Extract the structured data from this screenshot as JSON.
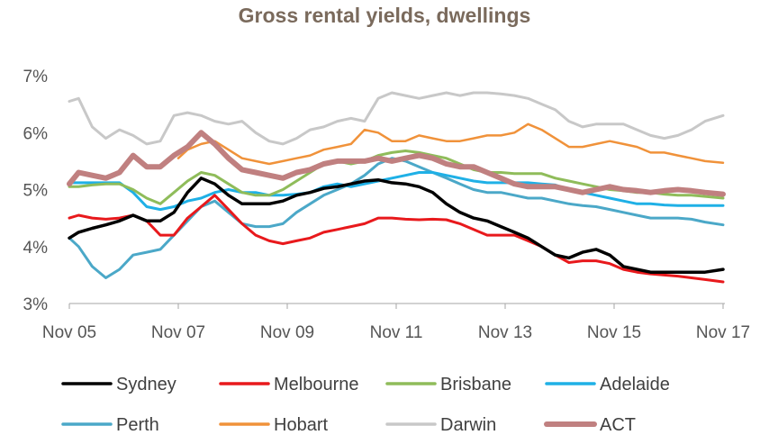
{
  "chart_data": {
    "type": "line",
    "title": "Gross rental yields, dwellings",
    "xlabel": "",
    "ylabel": "",
    "x_ticks": [
      "Nov 05",
      "Nov 07",
      "Nov 09",
      "Nov 11",
      "Nov 13",
      "Nov 15",
      "Nov 17"
    ],
    "y_ticks": [
      "3%",
      "4%",
      "5%",
      "6%",
      "7%"
    ],
    "ylim": [
      3,
      7
    ],
    "xlim": [
      2005.83,
      2017.83
    ],
    "grid": false,
    "legend_position": "bottom",
    "series": [
      {
        "name": "Sydney",
        "color": "#000000",
        "x": [
          2005.83,
          2006.0,
          2006.25,
          2006.5,
          2006.75,
          2007.0,
          2007.25,
          2007.5,
          2007.75,
          2008.0,
          2008.25,
          2008.5,
          2008.75,
          2009.0,
          2009.25,
          2009.5,
          2009.75,
          2010.0,
          2010.25,
          2010.5,
          2010.75,
          2011.0,
          2011.25,
          2011.5,
          2011.75,
          2012.0,
          2012.25,
          2012.5,
          2012.75,
          2013.0,
          2013.25,
          2013.5,
          2013.75,
          2014.0,
          2014.25,
          2014.5,
          2014.75,
          2015.0,
          2015.25,
          2015.5,
          2015.75,
          2016.0,
          2016.25,
          2016.5,
          2016.75,
          2017.0,
          2017.25,
          2017.5,
          2017.83
        ],
        "y": [
          4.15,
          4.25,
          4.32,
          4.38,
          4.45,
          4.55,
          4.45,
          4.45,
          4.6,
          4.95,
          5.2,
          5.1,
          4.9,
          4.75,
          4.75,
          4.75,
          4.8,
          4.9,
          4.95,
          5.02,
          5.05,
          5.1,
          5.15,
          5.17,
          5.12,
          5.1,
          5.05,
          4.95,
          4.75,
          4.6,
          4.5,
          4.45,
          4.35,
          4.25,
          4.15,
          4.0,
          3.85,
          3.8,
          3.9,
          3.95,
          3.85,
          3.65,
          3.6,
          3.55,
          3.55,
          3.55,
          3.55,
          3.55,
          3.6
        ]
      },
      {
        "name": "Melbourne",
        "color": "#e8191c",
        "x": [
          2005.83,
          2006.0,
          2006.25,
          2006.5,
          2006.75,
          2007.0,
          2007.25,
          2007.5,
          2007.75,
          2008.0,
          2008.25,
          2008.5,
          2008.75,
          2009.0,
          2009.25,
          2009.5,
          2009.75,
          2010.0,
          2010.25,
          2010.5,
          2010.75,
          2011.0,
          2011.25,
          2011.5,
          2011.75,
          2012.0,
          2012.25,
          2012.5,
          2012.75,
          2013.0,
          2013.25,
          2013.5,
          2013.75,
          2014.0,
          2014.25,
          2014.5,
          2014.75,
          2015.0,
          2015.25,
          2015.5,
          2015.75,
          2016.0,
          2016.25,
          2016.5,
          2016.75,
          2017.0,
          2017.25,
          2017.5,
          2017.83
        ],
        "y": [
          4.5,
          4.55,
          4.5,
          4.48,
          4.5,
          4.55,
          4.45,
          4.2,
          4.2,
          4.5,
          4.7,
          4.9,
          4.65,
          4.4,
          4.2,
          4.1,
          4.05,
          4.1,
          4.15,
          4.25,
          4.3,
          4.35,
          4.4,
          4.5,
          4.5,
          4.48,
          4.47,
          4.48,
          4.47,
          4.4,
          4.3,
          4.2,
          4.2,
          4.2,
          4.1,
          4.0,
          3.85,
          3.72,
          3.75,
          3.75,
          3.7,
          3.6,
          3.55,
          3.52,
          3.5,
          3.48,
          3.45,
          3.42,
          3.38
        ]
      },
      {
        "name": "Brisbane",
        "color": "#8fbc5a",
        "x": [
          2005.83,
          2006.0,
          2006.25,
          2006.5,
          2006.75,
          2007.0,
          2007.25,
          2007.5,
          2007.75,
          2008.0,
          2008.25,
          2008.5,
          2008.75,
          2009.0,
          2009.25,
          2009.5,
          2009.75,
          2010.0,
          2010.25,
          2010.5,
          2010.75,
          2011.0,
          2011.25,
          2011.5,
          2011.75,
          2012.0,
          2012.25,
          2012.5,
          2012.75,
          2013.0,
          2013.25,
          2013.5,
          2013.75,
          2014.0,
          2014.25,
          2014.5,
          2014.75,
          2015.0,
          2015.25,
          2015.5,
          2015.75,
          2016.0,
          2016.25,
          2016.5,
          2016.75,
          2017.0,
          2017.25,
          2017.5,
          2017.83
        ],
        "y": [
          5.05,
          5.05,
          5.08,
          5.1,
          5.1,
          5.0,
          4.85,
          4.75,
          4.95,
          5.15,
          5.3,
          5.25,
          5.1,
          4.95,
          4.9,
          4.9,
          5.0,
          5.15,
          5.3,
          5.45,
          5.5,
          5.45,
          5.5,
          5.6,
          5.65,
          5.68,
          5.65,
          5.6,
          5.55,
          5.45,
          5.35,
          5.3,
          5.3,
          5.28,
          5.28,
          5.28,
          5.2,
          5.15,
          5.1,
          5.05,
          5.0,
          4.98,
          4.95,
          4.95,
          4.92,
          4.9,
          4.9,
          4.88,
          4.85
        ]
      },
      {
        "name": "Adelaide",
        "color": "#1fb0e6",
        "x": [
          2005.83,
          2006.0,
          2006.25,
          2006.5,
          2006.75,
          2007.0,
          2007.25,
          2007.5,
          2007.75,
          2008.0,
          2008.25,
          2008.5,
          2008.75,
          2009.0,
          2009.25,
          2009.5,
          2009.75,
          2010.0,
          2010.25,
          2010.5,
          2010.75,
          2011.0,
          2011.25,
          2011.5,
          2011.75,
          2012.0,
          2012.25,
          2012.5,
          2012.75,
          2013.0,
          2013.25,
          2013.5,
          2013.75,
          2014.0,
          2014.25,
          2014.5,
          2014.75,
          2015.0,
          2015.25,
          2015.5,
          2015.75,
          2016.0,
          2016.25,
          2016.5,
          2016.75,
          2017.0,
          2017.25,
          2017.5,
          2017.83
        ],
        "y": [
          5.12,
          5.12,
          5.12,
          5.12,
          5.12,
          4.95,
          4.7,
          4.65,
          4.7,
          4.8,
          4.85,
          4.95,
          5.0,
          4.95,
          4.95,
          4.9,
          4.9,
          4.92,
          4.95,
          5.05,
          5.1,
          5.05,
          5.1,
          5.15,
          5.2,
          5.25,
          5.3,
          5.3,
          5.25,
          5.2,
          5.15,
          5.12,
          5.12,
          5.12,
          5.12,
          5.1,
          5.08,
          5.0,
          4.95,
          4.9,
          4.85,
          4.8,
          4.75,
          4.75,
          4.73,
          4.72,
          4.72,
          4.72,
          4.72
        ]
      },
      {
        "name": "Perth",
        "color": "#4ba8c8",
        "x": [
          2005.83,
          2006.0,
          2006.25,
          2006.5,
          2006.75,
          2007.0,
          2007.25,
          2007.5,
          2007.75,
          2008.0,
          2008.25,
          2008.5,
          2008.75,
          2009.0,
          2009.25,
          2009.5,
          2009.75,
          2010.0,
          2010.25,
          2010.5,
          2010.75,
          2011.0,
          2011.25,
          2011.5,
          2011.75,
          2012.0,
          2012.25,
          2012.5,
          2012.75,
          2013.0,
          2013.25,
          2013.5,
          2013.75,
          2014.0,
          2014.25,
          2014.5,
          2014.75,
          2015.0,
          2015.25,
          2015.5,
          2015.75,
          2016.0,
          2016.25,
          2016.5,
          2016.75,
          2017.0,
          2017.25,
          2017.5,
          2017.83
        ],
        "y": [
          4.15,
          4.0,
          3.65,
          3.45,
          3.6,
          3.85,
          3.9,
          3.95,
          4.2,
          4.45,
          4.7,
          4.8,
          4.6,
          4.4,
          4.35,
          4.35,
          4.4,
          4.6,
          4.75,
          4.9,
          5.0,
          5.1,
          5.25,
          5.45,
          5.55,
          5.5,
          5.4,
          5.3,
          5.2,
          5.1,
          5.0,
          4.95,
          4.95,
          4.9,
          4.85,
          4.85,
          4.8,
          4.75,
          4.72,
          4.7,
          4.65,
          4.6,
          4.55,
          4.5,
          4.5,
          4.5,
          4.48,
          4.43,
          4.38
        ]
      },
      {
        "name": "Hobart",
        "color": "#f0923a",
        "x": [
          2007.83,
          2008.0,
          2008.25,
          2008.5,
          2008.75,
          2009.0,
          2009.25,
          2009.5,
          2009.75,
          2010.0,
          2010.25,
          2010.5,
          2010.75,
          2011.0,
          2011.25,
          2011.5,
          2011.75,
          2012.0,
          2012.25,
          2012.5,
          2012.75,
          2013.0,
          2013.25,
          2013.5,
          2013.75,
          2014.0,
          2014.25,
          2014.5,
          2014.75,
          2015.0,
          2015.25,
          2015.5,
          2015.75,
          2016.0,
          2016.25,
          2016.5,
          2016.75,
          2017.0,
          2017.25,
          2017.5,
          2017.83
        ],
        "y": [
          5.55,
          5.7,
          5.8,
          5.85,
          5.7,
          5.55,
          5.5,
          5.45,
          5.5,
          5.55,
          5.6,
          5.7,
          5.75,
          5.8,
          6.05,
          6.0,
          5.85,
          5.85,
          5.95,
          5.9,
          5.85,
          5.85,
          5.9,
          5.95,
          5.95,
          6.0,
          6.15,
          6.05,
          5.9,
          5.75,
          5.75,
          5.8,
          5.85,
          5.8,
          5.75,
          5.65,
          5.65,
          5.6,
          5.55,
          5.5,
          5.47
        ]
      },
      {
        "name": "Darwin",
        "color": "#c8c8c8",
        "x": [
          2005.83,
          2006.0,
          2006.25,
          2006.5,
          2006.75,
          2007.0,
          2007.25,
          2007.5,
          2007.75,
          2008.0,
          2008.25,
          2008.5,
          2008.75,
          2009.0,
          2009.25,
          2009.5,
          2009.75,
          2010.0,
          2010.25,
          2010.5,
          2010.75,
          2011.0,
          2011.25,
          2011.5,
          2011.75,
          2012.0,
          2012.25,
          2012.5,
          2012.75,
          2013.0,
          2013.25,
          2013.5,
          2013.75,
          2014.0,
          2014.25,
          2014.5,
          2014.75,
          2015.0,
          2015.25,
          2015.5,
          2015.75,
          2016.0,
          2016.25,
          2016.5,
          2016.75,
          2017.0,
          2017.25,
          2017.5,
          2017.83
        ],
        "y": [
          6.55,
          6.6,
          6.1,
          5.9,
          6.05,
          5.95,
          5.8,
          5.85,
          6.3,
          6.35,
          6.3,
          6.2,
          6.15,
          6.2,
          6.0,
          5.85,
          5.8,
          5.9,
          6.05,
          6.1,
          6.2,
          6.25,
          6.2,
          6.6,
          6.7,
          6.65,
          6.6,
          6.65,
          6.7,
          6.65,
          6.7,
          6.7,
          6.68,
          6.65,
          6.6,
          6.5,
          6.4,
          6.2,
          6.1,
          6.15,
          6.15,
          6.15,
          6.05,
          5.95,
          5.9,
          5.95,
          6.05,
          6.2,
          6.3
        ]
      },
      {
        "name": "ACT",
        "color": "#c08080",
        "x": [
          2005.83,
          2006.0,
          2006.25,
          2006.5,
          2006.75,
          2007.0,
          2007.25,
          2007.5,
          2007.75,
          2008.0,
          2008.25,
          2008.5,
          2008.75,
          2009.0,
          2009.25,
          2009.5,
          2009.75,
          2010.0,
          2010.25,
          2010.5,
          2010.75,
          2011.0,
          2011.25,
          2011.5,
          2011.75,
          2012.0,
          2012.25,
          2012.5,
          2012.75,
          2013.0,
          2013.25,
          2013.5,
          2013.75,
          2014.0,
          2014.25,
          2014.5,
          2014.75,
          2015.0,
          2015.25,
          2015.5,
          2015.75,
          2016.0,
          2016.25,
          2016.5,
          2016.75,
          2017.0,
          2017.25,
          2017.5,
          2017.83
        ],
        "y": [
          5.1,
          5.3,
          5.25,
          5.2,
          5.3,
          5.6,
          5.4,
          5.4,
          5.6,
          5.75,
          6.0,
          5.8,
          5.55,
          5.35,
          5.3,
          5.25,
          5.2,
          5.3,
          5.35,
          5.45,
          5.5,
          5.5,
          5.5,
          5.55,
          5.5,
          5.55,
          5.6,
          5.55,
          5.45,
          5.4,
          5.4,
          5.3,
          5.2,
          5.1,
          5.05,
          5.05,
          5.05,
          5.0,
          4.95,
          5.0,
          5.05,
          5.0,
          4.98,
          4.95,
          4.98,
          5.0,
          4.98,
          4.95,
          4.92
        ]
      }
    ]
  }
}
